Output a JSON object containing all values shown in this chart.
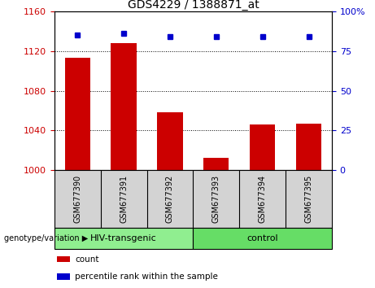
{
  "title": "GDS4229 / 1388871_at",
  "categories": [
    "GSM677390",
    "GSM677391",
    "GSM677392",
    "GSM677393",
    "GSM677394",
    "GSM677395"
  ],
  "bar_values": [
    1113,
    1128,
    1058,
    1012,
    1046,
    1047
  ],
  "bar_base": 1000,
  "bar_color": "#cc0000",
  "percentile_values": [
    85,
    86,
    84,
    84,
    84,
    84
  ],
  "percentile_color": "#0000cc",
  "left_ylim": [
    1000,
    1160
  ],
  "left_yticks": [
    1000,
    1040,
    1080,
    1120,
    1160
  ],
  "right_ylim": [
    0,
    100
  ],
  "right_yticks": [
    0,
    25,
    50,
    75,
    100
  ],
  "right_yticklabels": [
    "0",
    "25",
    "50",
    "75",
    "100%"
  ],
  "left_tick_color": "#cc0000",
  "right_tick_color": "#0000cc",
  "groups": [
    {
      "label": "HIV-transgenic",
      "start": 0,
      "end": 3,
      "color": "#90ee90"
    },
    {
      "label": "control",
      "start": 3,
      "end": 6,
      "color": "#66dd66"
    }
  ],
  "legend_items": [
    {
      "label": "count",
      "color": "#cc0000"
    },
    {
      "label": "percentile rank within the sample",
      "color": "#0000cc"
    }
  ],
  "grid_yticks": [
    1040,
    1080,
    1120
  ],
  "plot_bg": "white",
  "xtick_bg": "#d3d3d3"
}
